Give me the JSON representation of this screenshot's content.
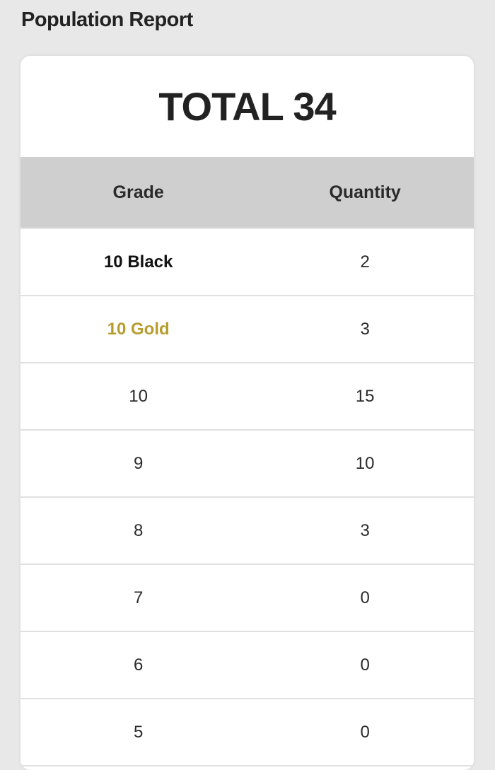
{
  "header": {
    "title": "Population Report"
  },
  "summary": {
    "total_label": "TOTAL 34"
  },
  "table": {
    "columns": [
      "Grade",
      "Quantity"
    ],
    "rows": [
      {
        "grade": "10 Black",
        "quantity": "2",
        "style": "bold",
        "color": "#111111"
      },
      {
        "grade": "10 Gold",
        "quantity": "3",
        "style": "bold",
        "color": "#b89d2e"
      },
      {
        "grade": "10",
        "quantity": "15"
      },
      {
        "grade": "9",
        "quantity": "10"
      },
      {
        "grade": "8",
        "quantity": "3"
      },
      {
        "grade": "7",
        "quantity": "0"
      },
      {
        "grade": "6",
        "quantity": "0"
      },
      {
        "grade": "5",
        "quantity": "0"
      }
    ]
  }
}
